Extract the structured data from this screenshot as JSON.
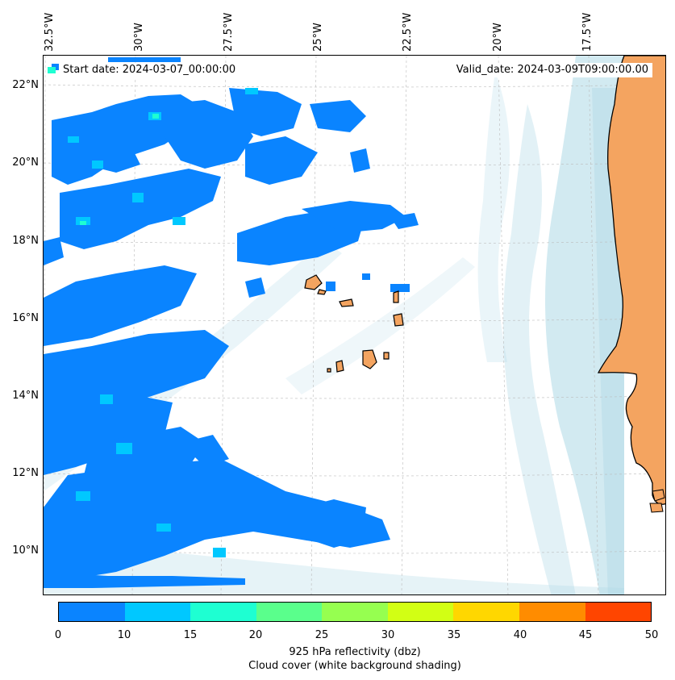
{
  "map": {
    "start_date": "Start date: 2024-03-07_00:00:00",
    "valid_date": "Valid_date: 2024-03-09T09:00:00.00",
    "lon_labels": [
      "32.5°W",
      "30°W",
      "27.5°W",
      "25°W",
      "22.5°W",
      "20°W",
      "17.5°W"
    ],
    "lat_labels": [
      "22°N",
      "20°N",
      "18°N",
      "16°N",
      "14°N",
      "12°N",
      "10°N"
    ],
    "land_color": "#f4a460",
    "cloud_color": "#add8e6",
    "reflectivity_color": "#0a84ff"
  },
  "colorbar": {
    "ticks": [
      "0",
      "10",
      "15",
      "20",
      "25",
      "30",
      "35",
      "40",
      "45",
      "50"
    ],
    "colors": [
      "#0a84ff",
      "#00c8ff",
      "#1effd2",
      "#5aff8c",
      "#96ff50",
      "#d2ff14",
      "#ffd700",
      "#ff8c00",
      "#ff4500"
    ],
    "label_line1": "925 hPa reflectivity (dbz)",
    "label_line2": "Cloud cover (white background shading)"
  }
}
